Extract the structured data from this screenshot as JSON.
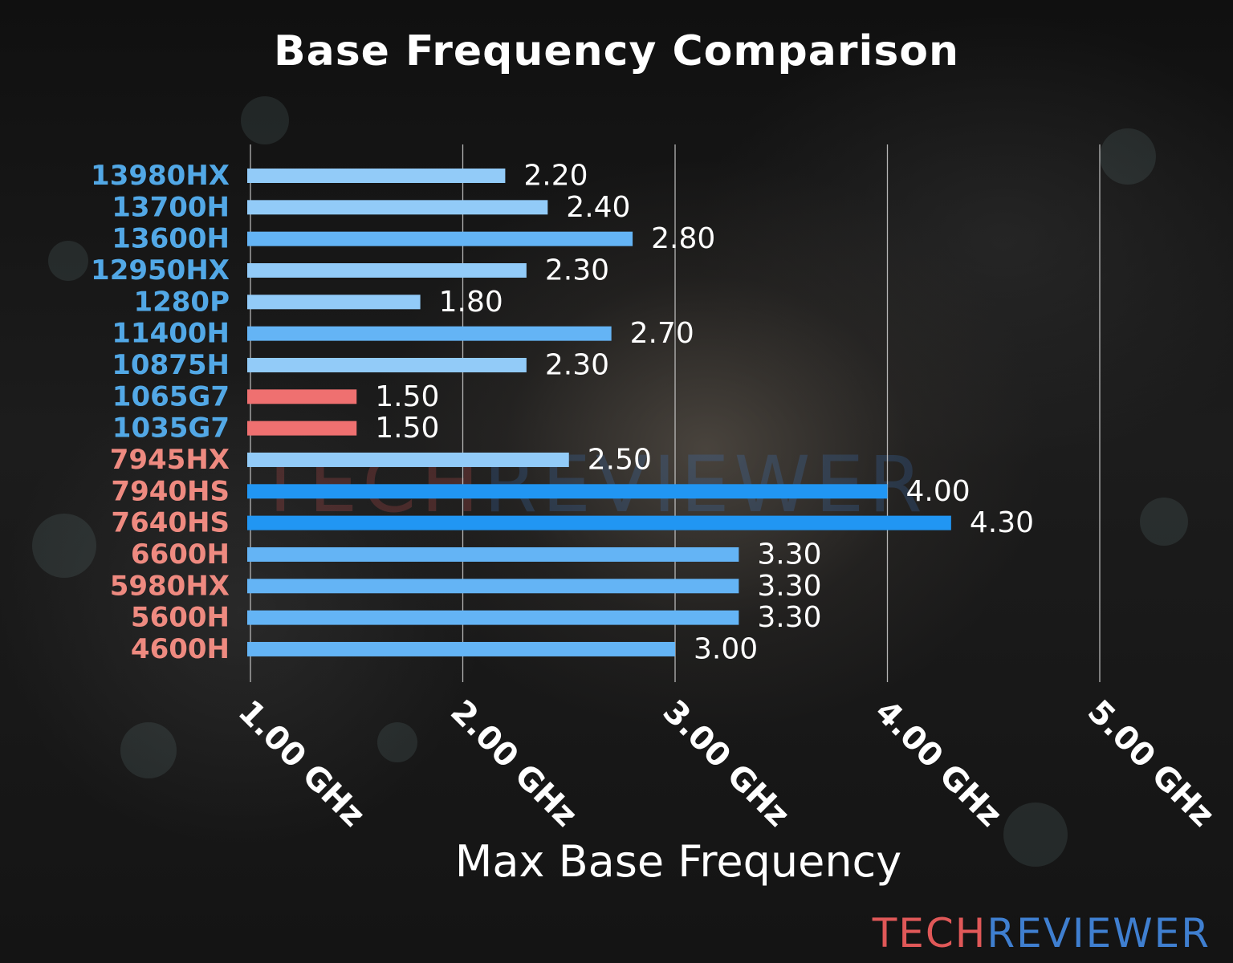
{
  "colors": {
    "intel_label": "#52a8e6",
    "amd_label": "#ee8a80",
    "bar_light": "#92cbf8",
    "bar_mid": "#64b4f5",
    "bar_strong": "#2196f3",
    "bar_red": "#ef7070",
    "grid": "#d0d0d0",
    "text": "#ffffff",
    "logo_tech": "#e05858",
    "logo_reviewer": "#3f7fd0"
  },
  "chart_data": {
    "type": "bar",
    "orientation": "horizontal",
    "title": "Base Frequency Comparison",
    "xlabel": "Max Base Frequency",
    "ylabel": "",
    "xlim": [
      1.0,
      5.5
    ],
    "grid": true,
    "categories": [
      "13980HX",
      "13700H",
      "13600H",
      "12950HX",
      "1280P",
      "11400H",
      "10875H",
      "1065G7",
      "1035G7",
      "7945HX",
      "7940HS",
      "7640HS",
      "6600H",
      "5980HX",
      "5600H",
      "4600H"
    ],
    "values": [
      2.2,
      2.4,
      2.8,
      2.3,
      1.8,
      2.7,
      2.3,
      1.5,
      1.5,
      2.5,
      4.0,
      4.3,
      3.3,
      3.3,
      3.3,
      3.0
    ],
    "value_labels": [
      "2.20",
      "2.40",
      "2.80",
      "2.30",
      "1.80",
      "2.70",
      "2.30",
      "1.50",
      "1.50",
      "2.50",
      "4.00",
      "4.30",
      "3.30",
      "3.30",
      "3.30",
      "3.00"
    ],
    "label_colors": [
      "intel",
      "intel",
      "intel",
      "intel",
      "intel",
      "intel",
      "intel",
      "intel",
      "intel",
      "amd",
      "amd",
      "amd",
      "amd",
      "amd",
      "amd",
      "amd"
    ],
    "bar_colors": [
      "bar_light",
      "bar_light",
      "bar_mid",
      "bar_light",
      "bar_light",
      "bar_mid",
      "bar_light",
      "bar_red",
      "bar_red",
      "bar_light",
      "bar_strong",
      "bar_strong",
      "bar_mid",
      "bar_mid",
      "bar_mid",
      "bar_mid"
    ],
    "x_ticks": [
      1,
      2,
      3,
      4,
      5
    ],
    "x_tick_labels": [
      "1.00 GHz",
      "2.00 GHz",
      "3.00 GHz",
      "4.00 GHz",
      "5.00 GHz"
    ]
  },
  "watermark": {
    "tech": "TECH",
    "reviewer": "REVIEWER"
  }
}
